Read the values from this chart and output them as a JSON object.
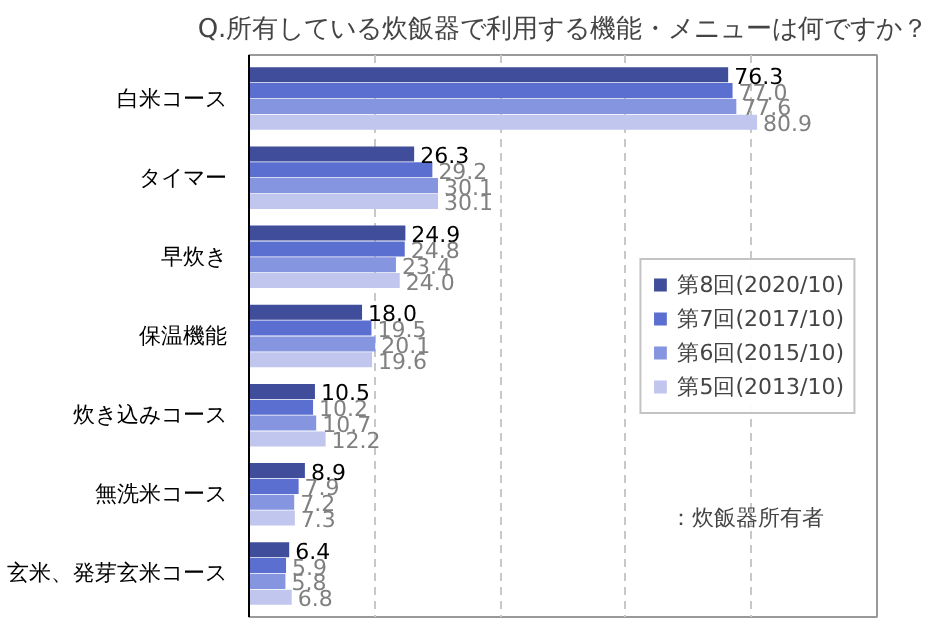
{
  "chart_data": {
    "type": "bar",
    "orientation": "horizontal",
    "title": "Q.所有している炊飯器で利用する機能・メニューは何ですか？",
    "categories": [
      "白米コース",
      "タイマー",
      "早炊き",
      "保温機能",
      "炊き込みコース",
      "無洗米コース",
      "玄米、発芽玄米コース"
    ],
    "series": [
      {
        "name": "第8回(2020/10)",
        "color": "#3f4d9a",
        "values": [
          76.3,
          26.3,
          24.9,
          18,
          10.5,
          8.9,
          6.4
        ],
        "value_labels": [
          "76.3",
          "26.3",
          "24.9",
          "18.0",
          "10.5",
          "8.9",
          "6.4"
        ]
      },
      {
        "name": "第7回(2017/10)",
        "color": "#5a6fd0",
        "values": [
          77,
          29.2,
          24.8,
          19.5,
          10.2,
          7.9,
          5.9
        ],
        "value_labels": [
          "77.0",
          "29.2",
          "24.8",
          "19.5",
          "10.2",
          "7.9",
          "5.9"
        ]
      },
      {
        "name": "第6回(2015/10)",
        "color": "#8595e0",
        "values": [
          77.6,
          30.1,
          23.4,
          20.1,
          10.7,
          7.2,
          5.8
        ],
        "value_labels": [
          "77.6",
          "30.1",
          "23.4",
          "20.1",
          "10.7",
          "7.2",
          "5.8"
        ]
      },
      {
        "name": "第5回(2013/10)",
        "color": "#c0c6ee",
        "values": [
          80.9,
          30.1,
          24,
          19.6,
          12.2,
          7.3,
          6.8
        ],
        "value_labels": [
          "80.9",
          "30.1",
          "24.0",
          "19.6",
          "12.2",
          "7.3",
          "6.8"
        ]
      }
    ],
    "xlim": [
      0,
      100
    ],
    "xticks": [
      {
        "value": 20,
        "label": null
      },
      {
        "value": 40,
        "label": null
      },
      {
        "value": 60,
        "label": null
      },
      {
        "value": 80,
        "label": null
      }
    ],
    "tick_labels": "y",
    "grid": "x",
    "legend": "right",
    "annotations": [
      "：炊飯器所有者"
    ]
  }
}
